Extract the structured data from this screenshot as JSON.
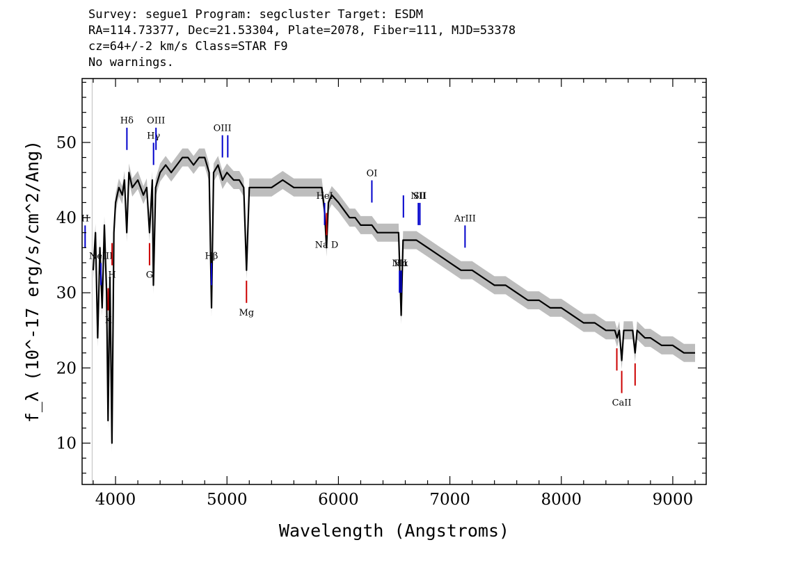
{
  "header": {
    "line1": "Survey: segue1 Program: segcluster Target: ESDM",
    "line2": "RA=114.73377, Dec=21.53304, Plate=2078, Fiber=111, MJD=53378",
    "line3": "cz=64+/-2 km/s Class=STAR F9",
    "line4": "No warnings."
  },
  "chart_data": {
    "type": "line",
    "xlabel": "Wavelength (Angstroms)",
    "ylabel": "f_λ (10^-17 erg/s/cm^2/Ang)",
    "xlim": [
      3700,
      9300
    ],
    "ylim": [
      4.5,
      58.5
    ],
    "x_ticks": [
      4000,
      5000,
      6000,
      7000,
      8000,
      9000
    ],
    "y_ticks": [
      10,
      20,
      30,
      40,
      50
    ],
    "series": [
      {
        "style": "black flux line with grey error band",
        "color": "#000000",
        "band_color": "#bdbdbd",
        "x": [
          3800,
          3820,
          3840,
          3860,
          3880,
          3900,
          3920,
          3933,
          3950,
          3968,
          3985,
          4000,
          4030,
          4060,
          4080,
          4101,
          4120,
          4150,
          4200,
          4250,
          4280,
          4305,
          4330,
          4340,
          4360,
          4400,
          4450,
          4500,
          4550,
          4600,
          4650,
          4700,
          4750,
          4800,
          4840,
          4861,
          4880,
          4920,
          4960,
          5000,
          5060,
          5110,
          5150,
          5175,
          5200,
          5250,
          5300,
          5400,
          5500,
          5600,
          5700,
          5800,
          5850,
          5875,
          5893,
          5910,
          5940,
          6000,
          6050,
          6100,
          6150,
          6200,
          6250,
          6300,
          6350,
          6400,
          6450,
          6500,
          6540,
          6563,
          6580,
          6620,
          6700,
          6800,
          6900,
          7000,
          7100,
          7200,
          7300,
          7400,
          7500,
          7600,
          7700,
          7800,
          7900,
          8000,
          8100,
          8200,
          8300,
          8400,
          8480,
          8500,
          8520,
          8542,
          8560,
          8600,
          8640,
          8662,
          8680,
          8750,
          8800,
          8900,
          9000,
          9100,
          9200
        ],
        "y": [
          33,
          38,
          24,
          36,
          28,
          39,
          30,
          13,
          32,
          10,
          38,
          42,
          44,
          43,
          45,
          38,
          46,
          44,
          45,
          43,
          44,
          38,
          45,
          31,
          44,
          46,
          47,
          46,
          47,
          48,
          48,
          47,
          48,
          48,
          46,
          28,
          46,
          47,
          45,
          46,
          45,
          45,
          44,
          33,
          44,
          44,
          44,
          44,
          45,
          44,
          44,
          44,
          44,
          41,
          36,
          42,
          43,
          42,
          41,
          40,
          40,
          39,
          39,
          39,
          38,
          38,
          38,
          38,
          38,
          27,
          37,
          37,
          37,
          36,
          35,
          34,
          33,
          33,
          32,
          31,
          31,
          30,
          29,
          29,
          28,
          28,
          27,
          26,
          26,
          25,
          25,
          24,
          25,
          21,
          25,
          25,
          25,
          22,
          25,
          24,
          24,
          23,
          23,
          22,
          22
        ],
        "y_error_band": 1.2
      }
    ],
    "emission_lines": [
      {
        "label": "H",
        "x": 3727,
        "color": "#0000cc"
      },
      {
        "label": "NeIII",
        "x": 3869,
        "color": "#0000cc"
      },
      {
        "label": "Hδ",
        "x": 4102,
        "color": "#0000cc"
      },
      {
        "label": "Hγ",
        "x": 4341,
        "color": "#0000cc"
      },
      {
        "label": "OIII",
        "x": 4363,
        "color": "#0000cc"
      },
      {
        "label": "Hβ",
        "x": 4861,
        "color": "#0000cc"
      },
      {
        "label": "OIII",
        "x": 4959,
        "color": "#0000cc"
      },
      {
        "label": "",
        "x": 5007,
        "color": "#0000cc"
      },
      {
        "label": "HeI",
        "x": 5876,
        "color": "#0000cc"
      },
      {
        "label": "OI",
        "x": 6300,
        "color": "#0000cc"
      },
      {
        "label": "NII",
        "x": 6548,
        "color": "#0000cc"
      },
      {
        "label": "Hα",
        "x": 6563,
        "color": "#0000cc"
      },
      {
        "label": "",
        "x": 6583,
        "color": "#0000cc"
      },
      {
        "label": "NII",
        "x": 6717,
        "color": "#0000cc"
      },
      {
        "label": "SII",
        "x": 6731,
        "color": "#0000cc"
      },
      {
        "label": "ArIII",
        "x": 7136,
        "color": "#0000cc"
      }
    ],
    "absorption_lines": [
      {
        "label": "K",
        "x": 3934,
        "color": "#cc0000"
      },
      {
        "label": "H",
        "x": 3969,
        "color": "#cc0000"
      },
      {
        "label": "G",
        "x": 4305,
        "color": "#cc0000"
      },
      {
        "label": "Mg",
        "x": 5175,
        "color": "#cc0000"
      },
      {
        "label": "Na D",
        "x": 5894,
        "color": "#cc0000"
      },
      {
        "label": "",
        "x": 8498,
        "color": "#cc0000"
      },
      {
        "label": "CaII",
        "x": 8542,
        "color": "#cc0000"
      },
      {
        "label": "",
        "x": 8662,
        "color": "#cc0000"
      }
    ]
  }
}
